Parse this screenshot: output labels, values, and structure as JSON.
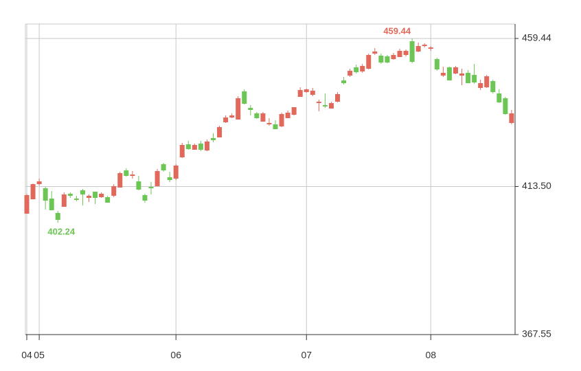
{
  "chart_data": {
    "type": "candlestick",
    "categories": [
      "04",
      null,
      "05",
      null,
      null,
      null,
      null,
      null,
      null,
      null,
      null,
      null,
      null,
      null,
      null,
      null,
      null,
      null,
      null,
      null,
      null,
      null,
      null,
      null,
      "06",
      null,
      null,
      null,
      null,
      null,
      null,
      null,
      null,
      null,
      null,
      null,
      null,
      null,
      null,
      null,
      null,
      null,
      null,
      null,
      null,
      "07",
      null,
      null,
      null,
      null,
      null,
      null,
      null,
      null,
      null,
      null,
      null,
      null,
      null,
      null,
      null,
      null,
      null,
      null,
      null,
      "08",
      null,
      null,
      null,
      null,
      null,
      null,
      null,
      null,
      null,
      null,
      null,
      null,
      null
    ],
    "open": [
      405.07,
      409.55,
      414.24,
      412.96,
      409.76,
      405.29,
      407.2,
      411.26,
      409.76,
      412.32,
      409.98,
      411.9,
      410.19,
      410.19,
      410.62,
      413.18,
      418.51,
      416.8,
      415.1,
      410.83,
      413.39,
      413.61,
      420.43,
      416.38,
      415.95,
      422.56,
      426.61,
      424.91,
      426.82,
      424.7,
      428.53,
      428.74,
      433.43,
      434.92,
      434.28,
      443.02,
      437.91,
      436.2,
      433.64,
      432.79,
      432.79,
      432.15,
      434.71,
      435.78,
      441.32,
      442.81,
      441.96,
      439.4,
      438.76,
      437.7,
      439.82,
      446.43,
      447.93,
      450.49,
      449.21,
      450.06,
      454.75,
      454.11,
      453.9,
      453.04,
      453.68,
      454.32,
      458.59,
      455.39,
      457.1,
      456.24,
      453.04,
      447.93,
      450.49,
      448.57,
      447.93,
      448.78,
      448.14,
      444.09,
      444.3,
      446.22,
      442.38,
      440.89,
      433.22
    ],
    "high": [
      411.26,
      414.46,
      415.95,
      413.39,
      412.11,
      405.92,
      411.68,
      411.68,
      410.62,
      412.75,
      411.04,
      411.9,
      411.68,
      410.62,
      414.24,
      418.08,
      419.15,
      418.29,
      416.8,
      411.26,
      414.88,
      418.94,
      420.85,
      418.08,
      420.43,
      427.04,
      427.68,
      426.82,
      427.68,
      428.1,
      430.02,
      432.36,
      435.56,
      436.2,
      441.53,
      443.66,
      438.76,
      436.63,
      436.63,
      434.71,
      434.07,
      436.42,
      437.06,
      438.12,
      444.3,
      443.88,
      444.09,
      440.46,
      442.38,
      439.82,
      442.81,
      447.5,
      450.06,
      451.34,
      451.55,
      454.75,
      456.46,
      454.75,
      454.32,
      454.96,
      456.24,
      456.03,
      459.44,
      458.16,
      457.95,
      457.1,
      453.47,
      450.7,
      450.7,
      450.91,
      450.06,
      449.64,
      451.55,
      446.65,
      448.14,
      446.65,
      443.66,
      441.32,
      437.27
    ],
    "low": [
      405.07,
      409.55,
      413.82,
      406.35,
      406.14,
      402.24,
      407.2,
      409.98,
      408.91,
      407.63,
      408.7,
      408.06,
      409.98,
      408.48,
      410.19,
      413.18,
      416.59,
      415.95,
      412.32,
      408.48,
      411.04,
      413.61,
      418.08,
      414.88,
      415.52,
      422.35,
      424.91,
      424.91,
      424.48,
      424.48,
      427.25,
      428.74,
      433.22,
      434.71,
      434.28,
      438.97,
      435.56,
      434.5,
      433.64,
      432.36,
      431.3,
      431.94,
      434.71,
      435.56,
      441.32,
      442.6,
      441.53,
      436.84,
      437.91,
      437.7,
      439.61,
      445.16,
      447.5,
      448.57,
      448.78,
      449.85,
      454.32,
      451.55,
      451.77,
      452.83,
      453.68,
      453.9,
      451.77,
      455.18,
      456.67,
      455.6,
      449.42,
      447.5,
      446.43,
      448.35,
      444.94,
      445.58,
      445.37,
      443.45,
      444.09,
      442.38,
      439.4,
      435.78,
      432.79
    ],
    "close": [
      410.83,
      414.24,
      415.1,
      409.12,
      406.14,
      403.15,
      411.04,
      410.62,
      409.34,
      411.04,
      410.62,
      409.98,
      411.26,
      408.48,
      413.61,
      417.66,
      416.8,
      417.23,
      412.54,
      409.12,
      412.96,
      418.29,
      418.51,
      415.52,
      420.0,
      426.4,
      425.12,
      426.4,
      424.91,
      427.46,
      427.89,
      431.94,
      434.92,
      435.56,
      440.89,
      439.19,
      437.27,
      434.71,
      436.2,
      433.22,
      431.3,
      435.99,
      436.42,
      438.12,
      443.45,
      443.66,
      443.24,
      439.82,
      438.34,
      439.4,
      442.17,
      445.58,
      449.42,
      449.0,
      450.91,
      454.32,
      455.39,
      451.98,
      451.98,
      454.32,
      455.6,
      455.6,
      452.19,
      457.1,
      457.52,
      456.67,
      449.85,
      448.78,
      446.43,
      450.49,
      448.57,
      445.58,
      445.8,
      445.58,
      447.71,
      442.81,
      439.61,
      435.99,
      436.2
    ],
    "up_color": "#e0695c",
    "down_color": "#6cc655",
    "ylim": [
      367.55,
      463.92
    ],
    "yticks": [
      367.55,
      {
        "value": 413.5,
        "label": "413.50"
      },
      459.44
    ],
    "grid": true
  }
}
